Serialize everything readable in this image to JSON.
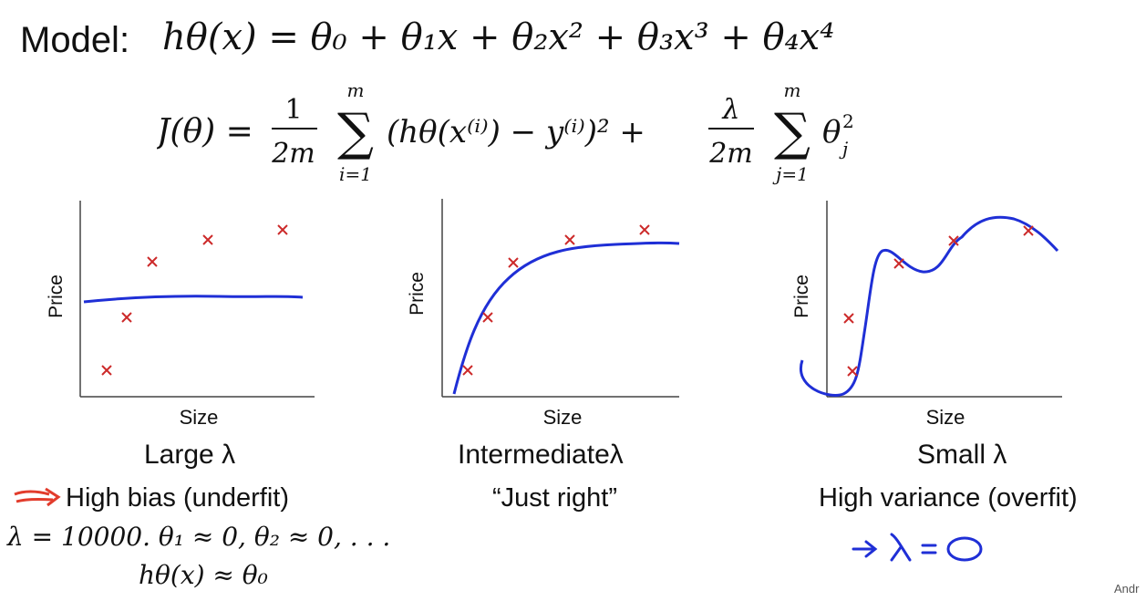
{
  "header": {
    "model_label": "Model:",
    "model_formula": "hθ(x) = θ₀ + θ₁x + θ₂x² + θ₃x³ + θ₄x⁴"
  },
  "cost": {
    "lhs": "J(θ) =",
    "frac1_num": "1",
    "frac1_den": "2m",
    "sum1_top": "m",
    "sum1_bottom": "i=1",
    "term1": "(hθ(x⁽ⁱ⁾) − y⁽ⁱ⁾)² +",
    "frac2_num": "λ",
    "frac2_den": "2m",
    "sum2_top": "m",
    "sum2_bottom": "j=1",
    "term2": "θ",
    "term2_sup": "2",
    "term2_sub": "j",
    "sum_symbol": "∑"
  },
  "colors": {
    "data_marker": "#cc2a2a",
    "fit_curve": "#1f2fd6",
    "arrow": "#e23c2c",
    "axis": "#444444"
  },
  "panels": [
    {
      "ylabel": "Price",
      "xlabel": "Size",
      "caption": "Large λ",
      "description": "High bias (underfit)"
    },
    {
      "ylabel": "Price",
      "xlabel": "Size",
      "caption": "Intermediateλ",
      "description": "“Just right”"
    },
    {
      "ylabel": "Price",
      "xlabel": "Size",
      "caption": "Small λ",
      "description": "High variance (overfit)"
    }
  ],
  "notes": {
    "reg_formula": "λ = 10000. θ₁ ≈ 0, θ₂ ≈ 0, . . .",
    "h_approx": "hθ(x) ≈ θ₀",
    "handwritten_lambda": "λ = 0",
    "author": "Andr"
  }
}
